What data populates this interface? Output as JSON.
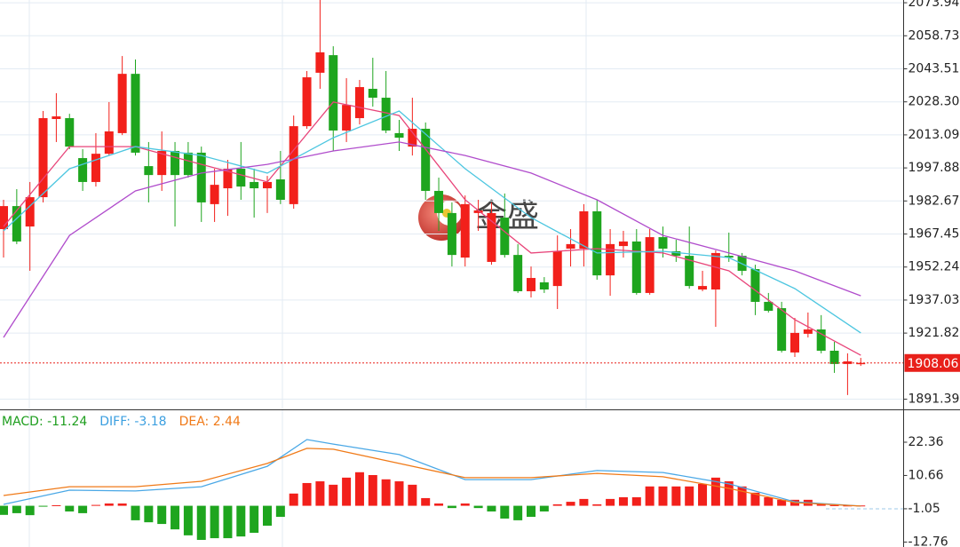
{
  "chart_data": [
    {
      "type": "candlestick",
      "watermark": "金盛",
      "up_color": "#f2201b",
      "down_color": "#1ea51e",
      "open": [
        1969.7,
        1980.3,
        1970.9,
        1984.4,
        2020.4,
        2020.8,
        2002.4,
        1991.4,
        2004.4,
        2013.9,
        2041.2,
        1998.7,
        1994.6,
        2005.7,
        2004.9,
        2004.9,
        1981.2,
        1988.5,
        1997.5,
        1991.4,
        1988.5,
        1992.6,
        1981.2,
        2017.1,
        2041.7,
        2049.8,
        2015.1,
        2020.8,
        2034.3,
        2030.2,
        2013.9,
        2007.7,
        2015.9,
        1987.3,
        1977.1,
        1956.6,
        1977.1,
        1954.6,
        1975.0,
        1957.8,
        1941.1,
        1945.2,
        1943.5,
        1960.7,
        1960.7,
        1977.9,
        1948.4,
        1961.9,
        1964.0,
        1940.3,
        1966.0,
        1959.5,
        1957.4,
        1941.9,
        1941.9,
        1957.4,
        1957.4,
        1951.3,
        1936.2,
        1933.3,
        1912.9,
        1921.5,
        1923.5,
        1913.7,
        1907.6,
        1907.9
      ],
      "high": [
        1983.2,
        1988.1,
        1991.4,
        2024.1,
        2032.3,
        2022.8,
        2006.5,
        2013.9,
        2028.2,
        2049.4,
        2047.8,
        2009.8,
        2014.7,
        2009.8,
        2009.8,
        2007.7,
        1997.5,
        2001.6,
        2009.8,
        1997.5,
        1994.2,
        2005.7,
        2022.0,
        2042.5,
        2075.2,
        2053.9,
        2039.2,
        2038.4,
        2048.6,
        2042.5,
        2020.0,
        2030.2,
        2018.8,
        1993.4,
        1982.0,
        1985.2,
        1983.2,
        1982.0,
        1986.1,
        1962.8,
        1952.5,
        1947.6,
        1966.8,
        1969.7,
        1981.2,
        1983.2,
        1969.7,
        1968.9,
        1969.7,
        1969.7,
        1970.9,
        1964.8,
        1970.9,
        1950.5,
        1959.9,
        1968.1,
        1958.7,
        1953.3,
        1940.3,
        1936.2,
        1928.8,
        1931.3,
        1930.1,
        1917.8,
        1912.5,
        1910.4
      ],
      "low": [
        1956.6,
        1962.8,
        1950.5,
        1982.0,
        2009.8,
        2006.5,
        1987.3,
        1989.3,
        2003.6,
        2013.0,
        2003.6,
        1982.0,
        1987.3,
        1970.9,
        1993.4,
        1973.0,
        1973.0,
        1975.8,
        1983.2,
        1975.0,
        1977.1,
        1981.2,
        1979.1,
        2015.9,
        2034.3,
        2005.7,
        2009.8,
        2017.9,
        2026.1,
        2013.9,
        2005.7,
        2003.6,
        1983.2,
        1968.9,
        1952.5,
        1952.5,
        1968.9,
        1953.3,
        1956.6,
        1940.3,
        1938.2,
        1940.3,
        1932.9,
        1952.5,
        1952.5,
        1946.4,
        1939.0,
        1956.6,
        1939.5,
        1939.5,
        1956.6,
        1954.6,
        1942.3,
        1941.1,
        1924.7,
        1954.6,
        1948.4,
        1930.1,
        1931.3,
        1912.9,
        1910.8,
        1919.8,
        1912.5,
        1903.5,
        1893.3,
        1906.7
      ],
      "close": [
        1980.3,
        1964.0,
        1984.4,
        2020.8,
        2021.6,
        2007.7,
        1991.4,
        2004.4,
        2014.7,
        2041.2,
        2004.9,
        1994.6,
        2005.7,
        1994.6,
        1994.6,
        1982.0,
        1990.1,
        1997.5,
        1989.3,
        1988.5,
        1991.4,
        1983.2,
        2017.1,
        2039.6,
        2051.1,
        2015.1,
        2026.9,
        2035.1,
        2030.2,
        2015.1,
        2011.8,
        2015.9,
        1987.3,
        1977.1,
        1957.8,
        1981.2,
        1978.3,
        1977.1,
        1957.8,
        1941.1,
        1947.2,
        1941.9,
        1959.5,
        1962.8,
        1977.9,
        1948.4,
        1962.8,
        1964.0,
        1940.3,
        1966.0,
        1960.7,
        1957.4,
        1943.5,
        1943.5,
        1958.7,
        1956.6,
        1950.5,
        1936.2,
        1932.1,
        1913.7,
        1921.9,
        1923.5,
        1913.7,
        1907.6,
        1908.8,
        1908.1
      ],
      "series": [
        {
          "color": "#e8457a",
          "x": [
            0,
            5,
            10,
            15,
            20,
            25,
            30,
            35,
            40,
            45,
            50,
            55,
            60,
            65
          ],
          "values": [
            1970.9,
            2007.7,
            2007.7,
            1999.5,
            1991.4,
            2028.2,
            2022.0,
            1983.2,
            1958.7,
            1960.7,
            1958.7,
            1950.5,
            1928.0,
            1911.6
          ]
        },
        {
          "color": "#4cc6e0",
          "x": [
            0,
            5,
            10,
            15,
            20,
            25,
            30,
            35,
            40,
            45,
            50,
            55,
            60,
            65
          ],
          "values": [
            1968.9,
            1997.5,
            2007.7,
            2003.6,
            1995.5,
            2011.8,
            2024.1,
            1997.5,
            1975.0,
            1958.7,
            1959.5,
            1956.6,
            1942.3,
            1921.9
          ]
        },
        {
          "color": "#b04ccc",
          "x": [
            0,
            5,
            10,
            15,
            20,
            25,
            30,
            35,
            40,
            45,
            50,
            55,
            60,
            65
          ],
          "values": [
            1919.8,
            1966.8,
            1987.3,
            1995.5,
            1999.5,
            2005.7,
            2009.8,
            2003.6,
            1995.5,
            1983.2,
            1966.8,
            1958.7,
            1950.5,
            1939.0
          ]
        }
      ],
      "last_price": 1908.06,
      "last_price_color": "#e8201a",
      "ylim": [
        1886.7,
        2075.2
      ],
      "yticks": [
        2073.94,
        2058.73,
        2043.51,
        {
          "value": 2028.3,
          "label": "2028.30"
        },
        2013.09,
        1997.88,
        1982.67,
        1967.45,
        1952.24,
        1937.03,
        1921.82,
        1891.39
      ],
      "grid": true
    },
    {
      "type": "macd",
      "legend": [
        {
          "label": "MACD: -11.24",
          "color": "#1e9e1e"
        },
        {
          "label": "DIFF: -3.18",
          "color": "#3b9fe0"
        },
        {
          "label": "DEA: 2.44",
          "color": "#f07a18"
        }
      ],
      "up_color": "#f2201b",
      "down_color": "#1ea51e",
      "histogram": [
        -3.2,
        -2.6,
        -3.3,
        -0.3,
        0.2,
        -2.0,
        -2.6,
        0.3,
        0.8,
        0.8,
        -5.1,
        -5.8,
        -6.4,
        -8.3,
        -10.4,
        -12.0,
        -11.4,
        -11.4,
        -10.8,
        -9.5,
        -7.0,
        -3.9,
        4.3,
        8.0,
        8.6,
        7.4,
        9.9,
        11.8,
        10.8,
        9.3,
        8.6,
        7.4,
        2.7,
        0.8,
        -0.8,
        0.8,
        -0.8,
        -2.0,
        -4.5,
        -5.1,
        -3.9,
        -2.0,
        0.5,
        1.4,
        2.4,
        0.5,
        2.4,
        3.0,
        3.0,
        6.8,
        6.8,
        6.8,
        6.8,
        7.7,
        9.9,
        8.6,
        6.8,
        4.6,
        3.0,
        2.1,
        2.1,
        2.1,
        0.5,
        0.2,
        0.1,
        0.1
      ],
      "series": [
        {
          "color": "#4aa8e6",
          "x": [
            0,
            5,
            10,
            15,
            20,
            23,
            25,
            30,
            35,
            40,
            45,
            50,
            55,
            60,
            65
          ],
          "values": [
            0.5,
            5.5,
            5.2,
            6.7,
            13.9,
            23.3,
            21.7,
            18.0,
            9.2,
            9.2,
            12.4,
            11.7,
            7.7,
            1.4,
            -0.1
          ]
        },
        {
          "color": "#f07a18",
          "x": [
            0,
            5,
            10,
            15,
            20,
            23,
            25,
            30,
            35,
            40,
            45,
            50,
            55,
            60,
            65
          ],
          "values": [
            3.6,
            6.7,
            6.7,
            8.6,
            14.9,
            20.2,
            19.9,
            14.9,
            9.9,
            9.9,
            11.4,
            10.2,
            6.1,
            1.1,
            -0.1
          ]
        }
      ],
      "ylim": [
        -14.5,
        33.6
      ],
      "yticks": [
        22.36,
        10.66,
        -1.05,
        -12.76
      ]
    }
  ]
}
